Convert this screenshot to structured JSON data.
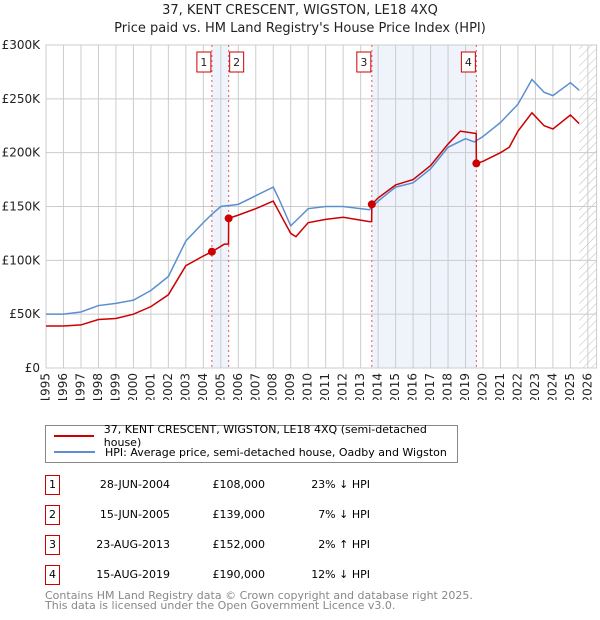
{
  "chart_data": {
    "type": "line",
    "title": "37, KENT CRESCENT, WIGSTON, LE18 4XQ",
    "subtitle": "Price paid vs. HM Land Registry's House Price Index (HPI)",
    "xlim": [
      1995,
      2026.5
    ],
    "ylim": [
      0,
      300000
    ],
    "x_ticks": [
      "1995",
      "1996",
      "1997",
      "1998",
      "1999",
      "2000",
      "2001",
      "2002",
      "2003",
      "2004",
      "2005",
      "2006",
      "2007",
      "2008",
      "2009",
      "2010",
      "2011",
      "2012",
      "2013",
      "2014",
      "2015",
      "2016",
      "2017",
      "2018",
      "2019",
      "2020",
      "2021",
      "2022",
      "2023",
      "2024",
      "2025",
      "2026"
    ],
    "y_ticks": [
      {
        "v": 0,
        "label": "£0"
      },
      {
        "v": 50000,
        "label": "£50K"
      },
      {
        "v": 100000,
        "label": "£100K"
      },
      {
        "v": 150000,
        "label": "£150K"
      },
      {
        "v": 200000,
        "label": "£200K"
      },
      {
        "v": 250000,
        "label": "£250K"
      },
      {
        "v": 300000,
        "label": "£300K"
      }
    ],
    "grid": true,
    "series": [
      {
        "name": "37, KENT CRESCENT, WIGSTON, LE18 4XQ (semi-detached house)",
        "color": "#cc0000",
        "x": [
          1995,
          1996,
          1997,
          1998,
          1999,
          2000,
          2001,
          2002,
          2003,
          2004,
          2004.49,
          2005.2,
          2005.44,
          2005.45,
          2006,
          2007,
          2008,
          2008.3,
          2009,
          2009.3,
          2010,
          2011,
          2012,
          2013.5,
          2013.63,
          2013.64,
          2014,
          2015,
          2016,
          2017,
          2018,
          2018.7,
          2019.5,
          2019.61,
          2019.62,
          2020,
          2021,
          2021.5,
          2022,
          2022.8,
          2023.5,
          2024,
          2025,
          2025.5
        ],
        "y": [
          39000,
          39000,
          40000,
          45000,
          46000,
          50000,
          57000,
          68000,
          95000,
          104000,
          108000,
          115000,
          115000,
          139000,
          142000,
          148000,
          155000,
          146000,
          125000,
          122000,
          135000,
          138000,
          140000,
          136000,
          136000,
          152000,
          158000,
          170000,
          175000,
          188000,
          208000,
          220000,
          218000,
          218000,
          190000,
          192000,
          200000,
          205000,
          220000,
          237000,
          225000,
          222000,
          235000,
          227000
        ]
      },
      {
        "name": "HPI: Average price, semi-detached house, Oadby and Wigston",
        "color": "#5b8fd0",
        "x": [
          1995,
          1996,
          1997,
          1998,
          1999,
          2000,
          2001,
          2002,
          2003,
          2004,
          2004.5,
          2005,
          2006,
          2007,
          2008,
          2008.3,
          2009,
          2010,
          2011,
          2012,
          2013.5,
          2014,
          2015,
          2016,
          2017,
          2018,
          2019,
          2019.5,
          2020,
          2021,
          2022,
          2022.8,
          2023.5,
          2024,
          2025,
          2025.5
        ],
        "y": [
          50000,
          50000,
          52000,
          58000,
          60000,
          63000,
          72000,
          85000,
          118000,
          135000,
          143000,
          150000,
          152000,
          160000,
          168000,
          158000,
          132000,
          148000,
          150000,
          150000,
          147000,
          155000,
          168000,
          172000,
          185000,
          205000,
          213000,
          210000,
          215000,
          228000,
          245000,
          268000,
          256000,
          253000,
          265000,
          258000
        ]
      }
    ],
    "sales": [
      {
        "id": "1",
        "x": 2004.49,
        "price": 108000,
        "date": "28-JUN-2004",
        "price_label": "£108,000",
        "hpi": "23% ↓ HPI"
      },
      {
        "id": "2",
        "x": 2005.45,
        "price": 139000,
        "date": "15-JUN-2005",
        "price_label": "£139,000",
        "hpi": "7% ↓ HPI"
      },
      {
        "id": "3",
        "x": 2013.64,
        "price": 152000,
        "date": "23-AUG-2013",
        "price_label": "£152,000",
        "hpi": "2% ↑ HPI"
      },
      {
        "id": "4",
        "x": 2019.62,
        "price": 190000,
        "date": "15-AUG-2019",
        "price_label": "£190,000",
        "hpi": "12% ↓ HPI"
      }
    ],
    "shaded": [
      [
        2004.49,
        2005.45
      ],
      [
        2013.64,
        2019.62
      ]
    ],
    "future_hatch_from": 2025.5
  },
  "footer": {
    "line1": "Contains HM Land Registry data © Crown copyright and database right 2025.",
    "line2": "This data is licensed under the Open Government Licence v3.0."
  }
}
